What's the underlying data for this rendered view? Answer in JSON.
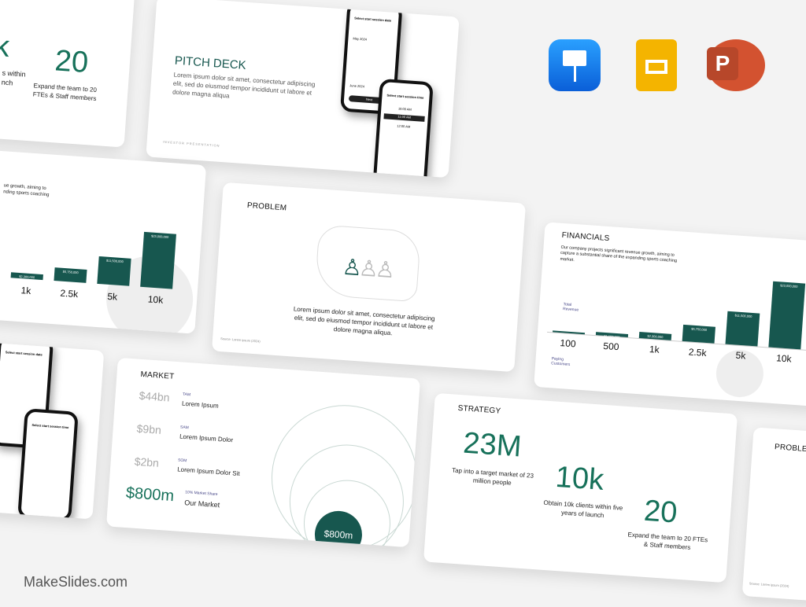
{
  "brand": "MakeSlides.com",
  "apps": [
    {
      "name": "keynote-icon",
      "color": "#1a7cf0"
    },
    {
      "name": "google-slides-icon",
      "color": "#f4b400"
    },
    {
      "name": "powerpoint-icon",
      "color": "#d35230"
    }
  ],
  "strategy": {
    "title": "STRATEGY",
    "stats": [
      {
        "value": "23M",
        "text": "Tap into a target market of 23 million people"
      },
      {
        "value": "10k",
        "text": "Obtain 10k clients within five years of launch"
      },
      {
        "value": "20",
        "text": "Expand the team to 20 FTEs & Staff members"
      }
    ],
    "partial_value": "k",
    "partial_text": "s within\nnch"
  },
  "pitch": {
    "title": "PITCH DECK",
    "body": "Lorem ipsum dolor sit amet, consectetur adipiscing elit, sed do eiusmod tempor incididunt ut labore et dolore magna aliqua",
    "footer": "INVESTOR PRESENTATION",
    "phone1_title": "Select start session date",
    "phone1_month1": "May 2024",
    "phone1_month2": "June 2024",
    "phone1_button": "Next",
    "phone2_title": "Select start session time",
    "phone2_slots": [
      "10:00 AM",
      "11:00 AM",
      "12:00 AM"
    ]
  },
  "problem": {
    "title": "PROBLEM",
    "body": "Lorem ipsum dolor sit amet, consectetur adipiscing elit, sed do eiusmod tempor incididunt ut labore et dolore magna aliqua.",
    "source": "Source: Lorem ipsum (2024)"
  },
  "financials": {
    "title": "FINANCIALS",
    "body": "Our company projects significant revenue growth, aiming to capture a substantial share of the expanding sports coaching market.",
    "partial_body": "ue growth, aiming to\nnding sports coaching",
    "revenue_label": "Total Revenue",
    "customers_label": "Paying Customers"
  },
  "chart_data": {
    "type": "bar",
    "categories": [
      "100",
      "500",
      "1k",
      "2.5k",
      "5k",
      "10k"
    ],
    "values": [
      230000,
      1150000,
      2300000,
      5750000,
      11500000,
      23000000
    ],
    "value_labels": [
      "$230,000",
      "$1,150,000",
      "$2,300,000",
      "$5,750,000",
      "$11,500,000",
      "$23,000,000"
    ],
    "title": "FINANCIALS",
    "xlabel": "Paying Customers",
    "ylabel": "Total Revenue"
  },
  "market": {
    "title": "MARKET",
    "rows": [
      {
        "value": "$44bn",
        "tag": "TAM",
        "label": "Lorem Ipsum"
      },
      {
        "value": "$9bn",
        "tag": "SAM",
        "label": "Lorem Ipsum Dolor"
      },
      {
        "value": "$2bn",
        "tag": "SOM",
        "label": "Lorem Ipsum Dolor Sit"
      },
      {
        "value": "$800m",
        "tag": "10% Market Share",
        "label": "Our Market"
      }
    ],
    "bubble": "$800m"
  },
  "colors": {
    "accent": "#17574f",
    "green_text": "#17715a"
  }
}
